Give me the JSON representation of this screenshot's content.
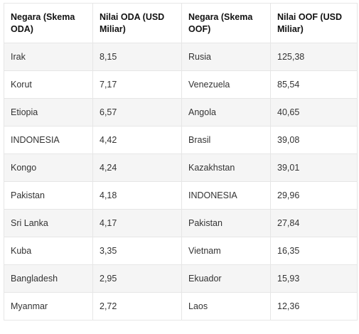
{
  "table": {
    "headers": [
      "Negara (Skema ODA)",
      "Nilai ODA (USD Miliar)",
      "Negara (Skema OOF)",
      "Nilai OOF (USD Miliar)"
    ],
    "rows": [
      [
        "Irak",
        "8,15",
        "Rusia",
        "125,38"
      ],
      [
        "Korut",
        "7,17",
        "Venezuela",
        "85,54"
      ],
      [
        "Etiopia",
        "6,57",
        "Angola",
        "40,65"
      ],
      [
        "INDONESIA",
        "4,42",
        "Brasil",
        "39,08"
      ],
      [
        "Kongo",
        "4,24",
        "Kazakhstan",
        "39,01"
      ],
      [
        "Pakistan",
        "4,18",
        "INDONESIA",
        "29,96"
      ],
      [
        "Sri Lanka",
        "4,17",
        "Pakistan",
        "27,84"
      ],
      [
        "Kuba",
        "3,35",
        "Vietnam",
        "16,35"
      ],
      [
        "Bangladesh",
        "2,95",
        "Ekuador",
        "15,93"
      ],
      [
        "Myanmar",
        "2,72",
        "Laos",
        "12,36"
      ]
    ]
  }
}
